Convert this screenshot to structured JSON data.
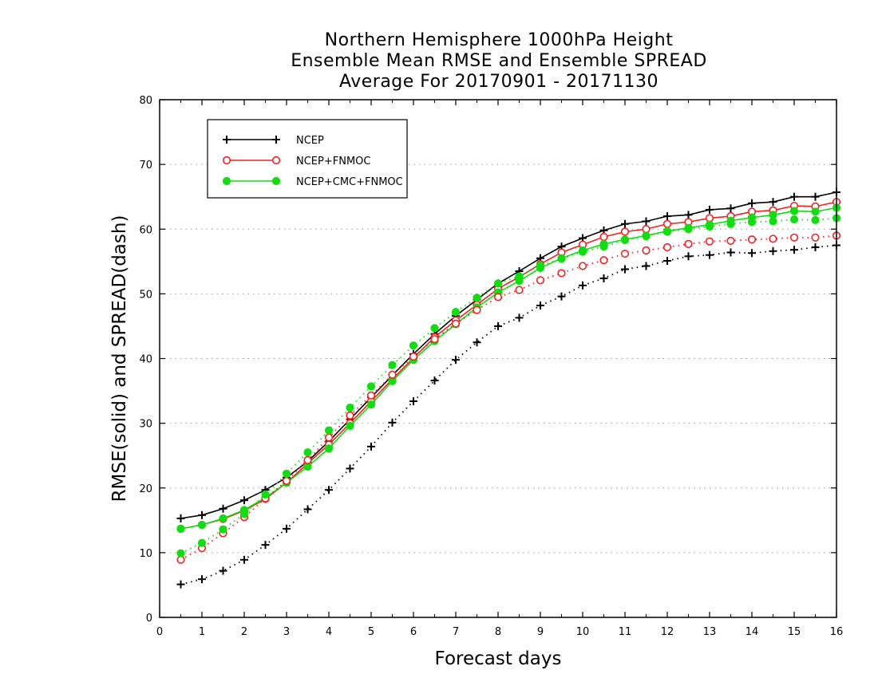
{
  "chart_data": {
    "type": "line",
    "title": [
      "Northern Hemisphere 1000hPa Height",
      "Ensemble Mean RMSE and Ensemble SPREAD",
      "Average For 20170901 - 20171130"
    ],
    "xlabel": "Forecast days",
    "ylabel": "RMSE(solid) and SPREAD(dash)",
    "xlim": [
      0,
      16
    ],
    "ylim": [
      0,
      80
    ],
    "x_ticks": [
      "0",
      "1",
      "2",
      "3",
      "4",
      "5",
      "6",
      "7",
      "8",
      "9",
      "10",
      "11",
      "12",
      "13",
      "14",
      "15",
      "16"
    ],
    "y_ticks": [
      "0",
      "10",
      "20",
      "30",
      "40",
      "50",
      "60",
      "70",
      "80"
    ],
    "grid": "horizontal dotted",
    "legend_position": "top-left",
    "x": [
      0.5,
      1,
      1.5,
      2,
      2.5,
      3,
      3.5,
      4,
      4.5,
      5,
      5.5,
      6,
      6.5,
      7,
      7.5,
      8,
      8.5,
      9,
      9.5,
      10,
      10.5,
      11,
      11.5,
      12,
      12.5,
      13,
      13.5,
      14,
      14.5,
      15,
      15.5,
      16
    ],
    "series": [
      {
        "name": "NCEP",
        "style": "solid",
        "marker": "plus",
        "color": "#000000",
        "legend": true,
        "values": [
          15.3,
          15.8,
          16.8,
          18.1,
          19.7,
          21.6,
          24.1,
          27.2,
          30.6,
          34.0,
          37.4,
          40.7,
          43.8,
          46.6,
          49.1,
          51.6,
          53.5,
          55.5,
          57.3,
          58.6,
          59.8,
          60.8,
          61.2,
          62.0,
          62.2,
          63.0,
          63.2,
          64.0,
          64.2,
          65.0,
          65.0,
          65.7
        ]
      },
      {
        "name": "NCEP+FNMOC",
        "style": "solid",
        "marker": "open-circle",
        "color": "#ee2222",
        "legend": true,
        "values": [
          13.7,
          14.3,
          15.2,
          16.5,
          18.3,
          20.8,
          23.8,
          26.7,
          30.0,
          33.4,
          36.8,
          40.1,
          43.3,
          45.9,
          48.3,
          50.8,
          52.6,
          54.6,
          56.4,
          57.6,
          58.8,
          59.6,
          60.0,
          60.8,
          61.1,
          61.7,
          62.0,
          62.7,
          62.9,
          63.6,
          63.5,
          64.2
        ]
      },
      {
        "name": "NCEP+CMC+FNMOC",
        "style": "solid",
        "marker": "filled-circle",
        "color": "#11dd11",
        "legend": true,
        "values": [
          13.7,
          14.3,
          15.3,
          16.6,
          18.5,
          20.8,
          23.3,
          26.1,
          29.6,
          32.9,
          36.5,
          39.8,
          42.7,
          45.3,
          47.9,
          50.2,
          52.0,
          54.0,
          55.5,
          56.7,
          57.7,
          58.4,
          59.0,
          59.7,
          60.2,
          60.7,
          61.3,
          61.8,
          62.2,
          62.8,
          62.7,
          63.3
        ]
      },
      {
        "name": "NCEP spread",
        "style": "dotted",
        "marker": "plus",
        "color": "#000000",
        "legend": false,
        "values": [
          5.1,
          5.9,
          7.2,
          8.9,
          11.2,
          13.7,
          16.7,
          19.7,
          23.0,
          26.4,
          30.1,
          33.4,
          36.6,
          39.8,
          42.5,
          45.0,
          46.3,
          48.2,
          49.6,
          51.3,
          52.4,
          53.8,
          54.3,
          55.1,
          55.8,
          56.0,
          56.4,
          56.3,
          56.6,
          56.8,
          57.2,
          57.5
        ]
      },
      {
        "name": "NCEP+FNMOC spread",
        "style": "dotted",
        "marker": "open-circle",
        "color": "#ee2222",
        "legend": false,
        "values": [
          8.9,
          10.7,
          13.0,
          15.5,
          18.4,
          21.1,
          24.3,
          27.8,
          31.2,
          34.3,
          37.5,
          40.3,
          43.0,
          45.4,
          47.5,
          49.5,
          50.6,
          52.1,
          53.2,
          54.3,
          55.2,
          56.2,
          56.7,
          57.2,
          57.7,
          58.1,
          58.2,
          58.4,
          58.5,
          58.7,
          58.7,
          59.0
        ]
      },
      {
        "name": "NCEP+CMC+FNMOC spread",
        "style": "dotted",
        "marker": "filled-circle",
        "color": "#11dd11",
        "legend": false,
        "values": [
          9.9,
          11.5,
          13.6,
          16.0,
          19.0,
          22.2,
          25.5,
          28.9,
          32.4,
          35.7,
          39.0,
          42.0,
          44.7,
          47.2,
          49.4,
          51.6,
          52.7,
          54.4,
          55.4,
          56.5,
          57.3,
          58.3,
          58.9,
          59.6,
          60.0,
          60.4,
          60.8,
          61.1,
          61.2,
          61.5,
          61.4,
          61.7
        ]
      }
    ]
  }
}
